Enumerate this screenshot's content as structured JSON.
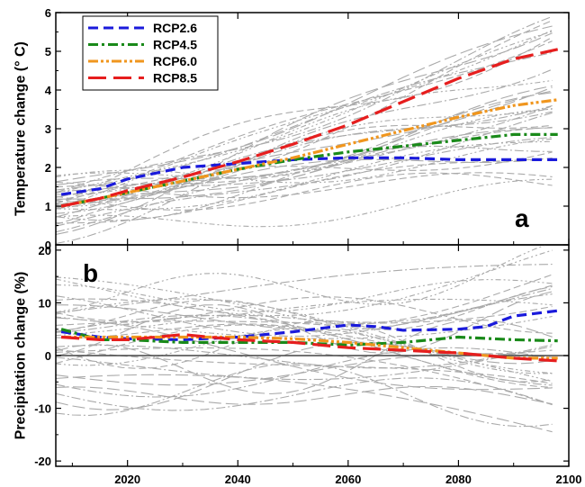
{
  "chart_data": [
    {
      "type": "line",
      "panel_label": "a",
      "ylabel": "Temperature change (° C)",
      "xlim": [
        2007,
        2100
      ],
      "ylim": [
        0,
        6
      ],
      "yticks": [
        0,
        1,
        2,
        3,
        4,
        5,
        6
      ],
      "legend": {
        "placement": "top-left"
      },
      "series": [
        {
          "name": "RCP2.6",
          "color": "#1a1adb",
          "dash": "dashed",
          "x": [
            2008,
            2015,
            2020,
            2030,
            2040,
            2050,
            2060,
            2070,
            2080,
            2090,
            2098
          ],
          "y": [
            1.3,
            1.45,
            1.7,
            2.0,
            2.1,
            2.2,
            2.25,
            2.25,
            2.2,
            2.2,
            2.2
          ]
        },
        {
          "name": "RCP4.5",
          "color": "#1a8a1a",
          "dash": "dashdot",
          "x": [
            2008,
            2015,
            2020,
            2030,
            2040,
            2050,
            2060,
            2070,
            2080,
            2090,
            2098
          ],
          "y": [
            1.0,
            1.2,
            1.35,
            1.65,
            1.95,
            2.2,
            2.4,
            2.55,
            2.7,
            2.85,
            2.85
          ]
        },
        {
          "name": "RCP6.0",
          "color": "#f0961e",
          "dash": "dashdotdot",
          "x": [
            2008,
            2015,
            2020,
            2030,
            2040,
            2050,
            2060,
            2070,
            2080,
            2090,
            2098
          ],
          "y": [
            1.0,
            1.2,
            1.35,
            1.65,
            1.95,
            2.25,
            2.6,
            2.95,
            3.3,
            3.6,
            3.75
          ]
        },
        {
          "name": "RCP8.5",
          "color": "#e61e1e",
          "dash": "longdash",
          "x": [
            2008,
            2015,
            2020,
            2030,
            2040,
            2050,
            2060,
            2070,
            2080,
            2090,
            2098
          ],
          "y": [
            1.0,
            1.2,
            1.4,
            1.75,
            2.15,
            2.6,
            3.1,
            3.7,
            4.3,
            4.8,
            5.05
          ]
        }
      ]
    },
    {
      "type": "line",
      "panel_label": "b",
      "ylabel": "Precipitation change (%)",
      "xlim": [
        2007,
        2100
      ],
      "ylim": [
        -21,
        21
      ],
      "yticks": [
        -20,
        -10,
        0,
        10,
        20
      ],
      "xticks": [
        2020,
        2040,
        2060,
        2080,
        2100
      ],
      "zero_line": true,
      "series": [
        {
          "name": "RCP2.6",
          "color": "#1a1adb",
          "dash": "dashed",
          "x": [
            2008,
            2015,
            2020,
            2030,
            2040,
            2050,
            2060,
            2065,
            2070,
            2080,
            2085,
            2090,
            2098
          ],
          "y": [
            4.5,
            3.5,
            3.2,
            3.0,
            3.5,
            4.5,
            5.8,
            5.5,
            4.8,
            5.0,
            5.5,
            7.5,
            8.5
          ]
        },
        {
          "name": "RCP4.5",
          "color": "#1a8a1a",
          "dash": "dashdot",
          "x": [
            2008,
            2015,
            2020,
            2030,
            2040,
            2050,
            2060,
            2070,
            2080,
            2090,
            2098
          ],
          "y": [
            5.0,
            3.0,
            3.0,
            2.5,
            2.5,
            2.5,
            2.0,
            2.5,
            3.5,
            3.0,
            2.8
          ]
        },
        {
          "name": "RCP6.0",
          "color": "#f0961e",
          "dash": "dashdotdot",
          "x": [
            2008,
            2015,
            2020,
            2030,
            2040,
            2050,
            2060,
            2070,
            2080,
            2090,
            2098
          ],
          "y": [
            3.5,
            3.5,
            3.5,
            3.5,
            3.5,
            3.2,
            2.5,
            1.5,
            0.5,
            -0.5,
            -0.5
          ]
        },
        {
          "name": "RCP8.5",
          "color": "#e61e1e",
          "dash": "longdash",
          "x": [
            2008,
            2015,
            2020,
            2030,
            2040,
            2050,
            2060,
            2070,
            2080,
            2090,
            2098
          ],
          "y": [
            3.5,
            3.0,
            3.0,
            4.0,
            3.0,
            2.5,
            1.5,
            1.0,
            0.5,
            -0.5,
            -1.0
          ]
        }
      ]
    }
  ]
}
